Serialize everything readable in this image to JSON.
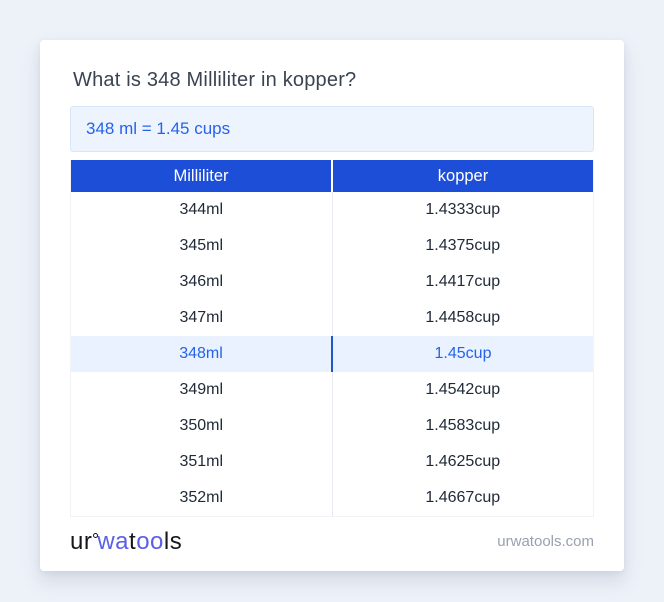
{
  "colors": {
    "page_bg": "#edf1f8",
    "header_blue": "#1d4ed8",
    "accent_blue": "#2563eb",
    "highlight_row_bg": "#e9f2fe",
    "result_box_bg": "#edf4fd",
    "result_box_border": "#d9e6f7",
    "logo_blue": "#5b5fe8",
    "footer_gray": "#98a1b0"
  },
  "main": {
    "title": "What is 348 Milliliter in kopper?",
    "result_text": "348 ml = 1.45 cups"
  },
  "table": {
    "headers": [
      "Milliliter",
      "kopper"
    ],
    "highlighted_row_index": 4,
    "rows": [
      {
        "ml": "344ml",
        "kopper": "1.4333cup"
      },
      {
        "ml": "345ml",
        "kopper": "1.4375cup"
      },
      {
        "ml": "346ml",
        "kopper": "1.4417cup"
      },
      {
        "ml": "347ml",
        "kopper": "1.4458cup"
      },
      {
        "ml": "348ml",
        "kopper": "1.45cup"
      },
      {
        "ml": "349ml",
        "kopper": "1.4542cup"
      },
      {
        "ml": "350ml",
        "kopper": "1.4583cup"
      },
      {
        "ml": "351ml",
        "kopper": "1.4625cup"
      },
      {
        "ml": "352ml",
        "kopper": "1.4667cup"
      }
    ]
  },
  "footer": {
    "logo_segments": [
      {
        "text": "ur",
        "tone": "dark"
      },
      {
        "text": "wa",
        "tone": "blue"
      },
      {
        "text": "t",
        "tone": "dark"
      },
      {
        "text": "oo",
        "tone": "blue"
      },
      {
        "text": "ls",
        "tone": "dark"
      }
    ],
    "website": "urwatools.com"
  }
}
